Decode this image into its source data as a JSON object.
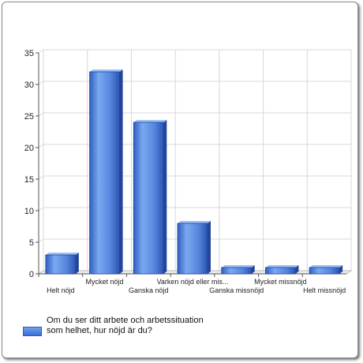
{
  "chart_data": {
    "type": "bar",
    "categories": [
      "Helt nöjd",
      "Mycket nöjd",
      "Ganska nöjd",
      "Varken nöjd eller mis...",
      "Ganska missnöjd",
      "Mycket missnöjd",
      "Helt missnöjd"
    ],
    "series": [
      {
        "name": "Om du ser ditt arbete och arbetssituation som helhet, hur nöjd är du?",
        "values": [
          3,
          32,
          24,
          8,
          1,
          1,
          1
        ]
      }
    ],
    "ylim": [
      0,
      35
    ],
    "yticks": [
      0,
      5,
      10,
      15,
      20,
      25,
      30,
      35
    ],
    "grid": true,
    "legend_position": "bottom-left",
    "colors": {
      "bar_light": "#7aa9f0",
      "bar_dark": "#2f5fc0",
      "grid": "#d8d8d8"
    }
  }
}
